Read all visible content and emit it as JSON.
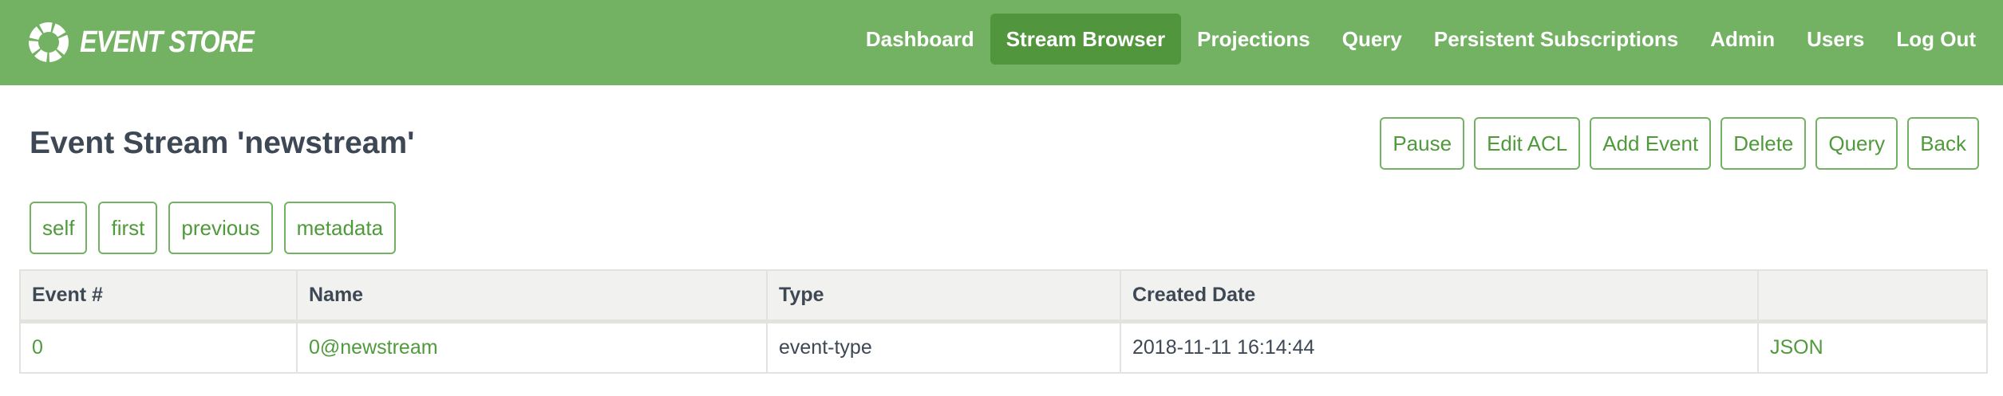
{
  "app": {
    "brand": "EVENT STORE",
    "brand_color": "#74b263",
    "accent_color": "#4f9a3a"
  },
  "nav": {
    "items": [
      {
        "label": "Dashboard",
        "active": false
      },
      {
        "label": "Stream Browser",
        "active": true
      },
      {
        "label": "Projections",
        "active": false
      },
      {
        "label": "Query",
        "active": false
      },
      {
        "label": "Persistent Subscriptions",
        "active": false
      },
      {
        "label": "Admin",
        "active": false
      },
      {
        "label": "Users",
        "active": false
      },
      {
        "label": "Log Out",
        "active": false
      }
    ]
  },
  "page": {
    "title": "Event Stream 'newstream'"
  },
  "actions": [
    "Pause",
    "Edit ACL",
    "Add Event",
    "Delete",
    "Query",
    "Back"
  ],
  "links": [
    "self",
    "first",
    "previous",
    "metadata"
  ],
  "table": {
    "headers": [
      "Event #",
      "Name",
      "Type",
      "Created Date",
      ""
    ],
    "rows": [
      {
        "number": "0",
        "name": "0@newstream",
        "type": "event-type",
        "created": "2018-11-11 16:14:44",
        "json": "JSON"
      }
    ]
  }
}
